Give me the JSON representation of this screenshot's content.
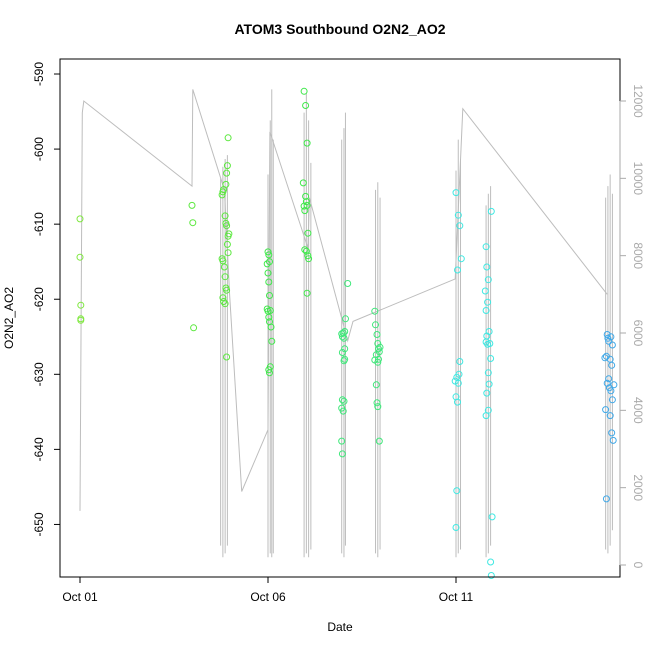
{
  "chart_data": {
    "type": "scatter",
    "title": "ATOM3 Southbound O2N2_AO2",
    "xlabel": "Date",
    "ylabel": "O2N2_AO2",
    "x_range_days": [
      0,
      14.5
    ],
    "x_ticks": [
      {
        "day": 0,
        "label": "Oct 01"
      },
      {
        "day": 5,
        "label": "Oct 06"
      },
      {
        "day": 10,
        "label": "Oct 11"
      }
    ],
    "ylim": [
      -657,
      -588
    ],
    "yticks": [
      -590,
      -600,
      -610,
      -620,
      -630,
      -640,
      -650
    ],
    "y2lim": [
      0,
      12800
    ],
    "y2ticks": [
      0,
      2000,
      4000,
      6000,
      8000,
      10000,
      12000
    ],
    "grid": false,
    "colors": {
      "line": "#bdbdbd",
      "axis": "#000000",
      "axis2": "#aaaaaa"
    },
    "series": [
      {
        "color": "#7fe83f",
        "points": [
          [
            0.0,
            -609.3
          ],
          [
            0.0,
            -614.4
          ],
          [
            0.02,
            -620.8
          ],
          [
            0.02,
            -622.6
          ],
          [
            0.02,
            -622.8
          ]
        ]
      },
      {
        "color": "#5ce83f",
        "points": [
          [
            2.98,
            -607.5
          ],
          [
            3.0,
            -609.8
          ],
          [
            3.02,
            -623.8
          ],
          [
            3.78,
            -606.1
          ],
          [
            3.8,
            -605.7
          ],
          [
            3.82,
            -605.4
          ],
          [
            3.86,
            -608.9
          ],
          [
            3.88,
            -609.9
          ],
          [
            3.9,
            -610.2
          ],
          [
            3.92,
            -612.7
          ],
          [
            3.94,
            -613.8
          ],
          [
            3.78,
            -614.6
          ],
          [
            3.8,
            -614.9
          ],
          [
            3.84,
            -615.7
          ],
          [
            3.86,
            -617.0
          ],
          [
            3.88,
            -618.5
          ],
          [
            3.9,
            -618.8
          ],
          [
            3.8,
            -619.8
          ],
          [
            3.82,
            -620.3
          ],
          [
            3.86,
            -620.6
          ],
          [
            3.9,
            -627.7
          ],
          [
            3.94,
            -598.5
          ],
          [
            3.92,
            -602.2
          ],
          [
            3.9,
            -603.2
          ],
          [
            3.88,
            -604.7
          ],
          [
            3.96,
            -611.3
          ],
          [
            3.94,
            -611.6
          ]
        ]
      },
      {
        "color": "#3fe84a",
        "points": [
          [
            5.0,
            -613.7
          ],
          [
            5.02,
            -614.1
          ],
          [
            5.04,
            -615.0
          ],
          [
            4.98,
            -615.3
          ],
          [
            5.0,
            -616.5
          ],
          [
            5.02,
            -617.7
          ],
          [
            5.04,
            -619.5
          ],
          [
            4.98,
            -621.3
          ],
          [
            5.0,
            -621.6
          ],
          [
            5.02,
            -622.4
          ],
          [
            5.06,
            -621.5
          ],
          [
            5.04,
            -623.0
          ],
          [
            5.08,
            -623.7
          ],
          [
            5.1,
            -625.6
          ],
          [
            5.02,
            -629.4
          ],
          [
            5.04,
            -629.8
          ],
          [
            5.06,
            -629.0
          ],
          [
            5.96,
            -592.3
          ],
          [
            6.0,
            -594.2
          ],
          [
            6.04,
            -599.2
          ],
          [
            5.94,
            -604.5
          ],
          [
            6.0,
            -606.3
          ],
          [
            6.02,
            -607.0
          ],
          [
            6.04,
            -607.5
          ],
          [
            5.96,
            -607.6
          ],
          [
            5.98,
            -608.2
          ],
          [
            6.06,
            -611.2
          ],
          [
            5.98,
            -613.4
          ],
          [
            6.02,
            -613.6
          ],
          [
            6.06,
            -614.2
          ],
          [
            6.08,
            -614.6
          ],
          [
            6.04,
            -619.2
          ]
        ]
      },
      {
        "color": "#3fe87a",
        "points": [
          [
            6.96,
            -624.6
          ],
          [
            7.0,
            -624.5
          ],
          [
            7.04,
            -624.3
          ],
          [
            6.98,
            -625.0
          ],
          [
            7.02,
            -625.2
          ],
          [
            7.06,
            -622.6
          ],
          [
            7.12,
            -617.9
          ],
          [
            6.98,
            -627.1
          ],
          [
            7.02,
            -628.2
          ],
          [
            7.04,
            -626.6
          ],
          [
            6.98,
            -633.4
          ],
          [
            7.02,
            -633.6
          ],
          [
            6.96,
            -634.5
          ],
          [
            7.0,
            -634.9
          ],
          [
            6.96,
            -638.9
          ],
          [
            6.98,
            -640.6
          ],
          [
            7.04,
            -628.0
          ],
          [
            7.84,
            -621.6
          ],
          [
            7.9,
            -624.7
          ],
          [
            7.94,
            -626.6
          ],
          [
            7.88,
            -627.4
          ],
          [
            7.84,
            -628.1
          ],
          [
            7.92,
            -628.4
          ],
          [
            7.96,
            -627.0
          ],
          [
            7.92,
            -625.9
          ],
          [
            7.86,
            -623.4
          ],
          [
            7.88,
            -631.4
          ],
          [
            7.9,
            -633.8
          ],
          [
            7.92,
            -634.3
          ],
          [
            7.96,
            -638.9
          ],
          [
            7.98,
            -626.4
          ],
          [
            7.94,
            -628.0
          ]
        ]
      },
      {
        "color": "#3fe8e2",
        "points": [
          [
            10.0,
            -605.8
          ],
          [
            10.06,
            -608.8
          ],
          [
            10.1,
            -610.2
          ],
          [
            10.14,
            -614.6
          ],
          [
            10.04,
            -616.1
          ],
          [
            10.1,
            -628.3
          ],
          [
            10.02,
            -630.4
          ],
          [
            9.98,
            -630.9
          ],
          [
            10.06,
            -631.2
          ],
          [
            10.08,
            -630.0
          ],
          [
            10.0,
            -633.0
          ],
          [
            10.04,
            -633.7
          ],
          [
            10.02,
            -645.5
          ],
          [
            10.0,
            -650.4
          ],
          [
            10.8,
            -613.0
          ],
          [
            10.82,
            -615.7
          ],
          [
            10.86,
            -617.4
          ],
          [
            10.78,
            -618.9
          ],
          [
            10.84,
            -620.4
          ],
          [
            10.8,
            -621.5
          ],
          [
            10.88,
            -624.3
          ],
          [
            10.82,
            -624.9
          ],
          [
            10.8,
            -625.7
          ],
          [
            10.84,
            -626.0
          ],
          [
            10.92,
            -627.9
          ],
          [
            10.86,
            -629.8
          ],
          [
            10.88,
            -631.3
          ],
          [
            10.82,
            -632.5
          ],
          [
            10.86,
            -634.8
          ],
          [
            10.8,
            -635.5
          ],
          [
            10.94,
            -608.3
          ],
          [
            10.96,
            -649.0
          ],
          [
            10.92,
            -655.0
          ],
          [
            10.94,
            -656.8
          ],
          [
            10.9,
            -625.9
          ]
        ]
      },
      {
        "color": "#3fa8e8",
        "points": [
          [
            14.02,
            -624.7
          ],
          [
            14.12,
            -625.0
          ],
          [
            14.06,
            -625.6
          ],
          [
            13.96,
            -627.8
          ],
          [
            14.0,
            -627.6
          ],
          [
            14.1,
            -628.0
          ],
          [
            14.16,
            -626.1
          ],
          [
            14.14,
            -628.8
          ],
          [
            14.02,
            -631.2
          ],
          [
            14.06,
            -630.6
          ],
          [
            14.08,
            -631.8
          ],
          [
            14.2,
            -631.4
          ],
          [
            14.12,
            -632.2
          ],
          [
            14.16,
            -633.4
          ],
          [
            13.98,
            -634.7
          ],
          [
            14.1,
            -635.5
          ],
          [
            14.14,
            -637.8
          ],
          [
            14.18,
            -638.8
          ],
          [
            14.0,
            -646.6
          ],
          [
            14.04,
            -625.2
          ]
        ]
      }
    ],
    "overlay_line": {
      "axis": "y2",
      "points": [
        [
          0.0,
          1400
        ],
        [
          0.06,
          11700
        ],
        [
          0.1,
          12000
        ],
        [
          2.98,
          9800
        ],
        [
          3.0,
          12300
        ],
        [
          3.84,
          9700
        ],
        [
          3.98,
          7000
        ],
        [
          4.3,
          1900
        ],
        [
          5.0,
          3500
        ],
        [
          5.05,
          11200
        ],
        [
          6.06,
          8200
        ],
        [
          6.1,
          9500
        ],
        [
          7.12,
          5800
        ],
        [
          7.26,
          6300
        ],
        [
          9.98,
          7400
        ],
        [
          10.18,
          11800
        ],
        [
          14.02,
          7000
        ]
      ],
      "spikes": [
        [
          3.74,
          500,
          10000
        ],
        [
          3.8,
          200,
          10300
        ],
        [
          3.86,
          300,
          10500
        ],
        [
          3.92,
          500,
          10600
        ],
        [
          5.0,
          200,
          10100
        ],
        [
          5.06,
          300,
          11500
        ],
        [
          5.1,
          200,
          12300
        ],
        [
          5.14,
          300,
          11000
        ],
        [
          5.96,
          200,
          11700
        ],
        [
          6.02,
          300,
          12200
        ],
        [
          6.08,
          200,
          11500
        ],
        [
          6.14,
          400,
          10400
        ],
        [
          6.96,
          300,
          11000
        ],
        [
          7.02,
          200,
          11300
        ],
        [
          7.06,
          500,
          11700
        ],
        [
          7.86,
          300,
          9700
        ],
        [
          7.92,
          200,
          9900
        ],
        [
          7.98,
          400,
          9500
        ],
        [
          10.0,
          200,
          10200
        ],
        [
          10.06,
          300,
          11000
        ],
        [
          10.12,
          400,
          10500
        ],
        [
          10.8,
          200,
          9300
        ],
        [
          10.86,
          300,
          9600
        ],
        [
          10.92,
          500,
          9800
        ],
        [
          13.98,
          400,
          9500
        ],
        [
          14.04,
          300,
          9800
        ],
        [
          14.1,
          500,
          10100
        ],
        [
          14.16,
          900,
          9600
        ]
      ]
    }
  }
}
